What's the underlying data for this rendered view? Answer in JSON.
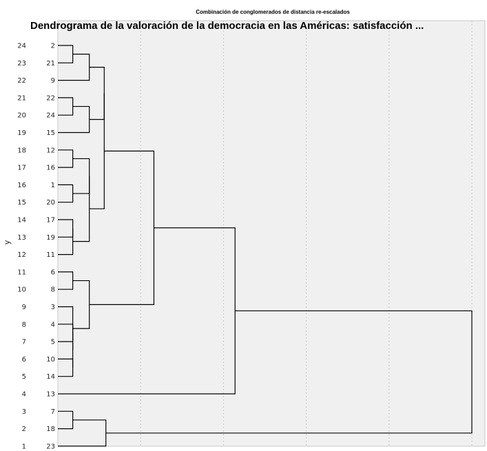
{
  "chart_data": {
    "type": "dendrogram",
    "supertitle": "Combinación de conglomerados de distancia re-escalados",
    "title": "Dendrograma de la valoración de la democracia en las Américas: satisfacción ...",
    "ylabel": "y",
    "xlabel": "",
    "xlim": [
      0,
      25
    ],
    "grid": true,
    "leaves": [
      {
        "label": "2",
        "case": "24"
      },
      {
        "label": "21",
        "case": "23"
      },
      {
        "label": "9",
        "case": "22"
      },
      {
        "label": "22",
        "case": "21"
      },
      {
        "label": "24",
        "case": "20"
      },
      {
        "label": "15",
        "case": "19"
      },
      {
        "label": "12",
        "case": "18"
      },
      {
        "label": "16",
        "case": "17"
      },
      {
        "label": "1",
        "case": "16"
      },
      {
        "label": "20",
        "case": "15"
      },
      {
        "label": "17",
        "case": "14"
      },
      {
        "label": "19",
        "case": "13"
      },
      {
        "label": "11",
        "case": "12"
      },
      {
        "label": "6",
        "case": "11"
      },
      {
        "label": "8",
        "case": "10"
      },
      {
        "label": "3",
        "case": "9"
      },
      {
        "label": "4",
        "case": "8"
      },
      {
        "label": "5",
        "case": "7"
      },
      {
        "label": "10",
        "case": "6"
      },
      {
        "label": "14",
        "case": "5"
      },
      {
        "label": "13",
        "case": "4"
      },
      {
        "label": "7",
        "case": "3"
      },
      {
        "label": "18",
        "case": "2"
      },
      {
        "label": "23",
        "case": "1"
      }
    ],
    "merges": [
      {
        "id": "A",
        "children": [
          0,
          1
        ],
        "height": 0.9
      },
      {
        "id": "B",
        "children": [
          3,
          4
        ],
        "height": 0.9
      },
      {
        "id": "C",
        "children": [
          "A",
          2
        ],
        "height": 1.9
      },
      {
        "id": "D",
        "children": [
          "B",
          5
        ],
        "height": 1.9
      },
      {
        "id": "E",
        "children": [
          "C",
          "D"
        ],
        "height": 2.8
      },
      {
        "id": "F",
        "children": [
          6,
          7
        ],
        "height": 0.9
      },
      {
        "id": "G",
        "children": [
          8,
          9
        ],
        "height": 0.9
      },
      {
        "id": "H",
        "children": [
          "F",
          "G"
        ],
        "height": 1.9
      },
      {
        "id": "I",
        "children": [
          10,
          11
        ],
        "height": 0.9
      },
      {
        "id": "J",
        "children": [
          "I",
          12
        ],
        "height": 0.9
      },
      {
        "id": "K",
        "children": [
          "H",
          "J"
        ],
        "height": 1.9
      },
      {
        "id": "L",
        "children": [
          "E",
          "K"
        ],
        "height": 2.8
      },
      {
        "id": "M",
        "children": [
          13,
          14
        ],
        "height": 0.9
      },
      {
        "id": "N",
        "children": [
          16,
          17
        ],
        "height": 0.9
      },
      {
        "id": "O",
        "children": [
          18,
          19
        ],
        "height": 0.9
      },
      {
        "id": "P",
        "children": [
          "N",
          "O"
        ],
        "height": 0.9
      },
      {
        "id": "Q",
        "children": [
          15,
          "P"
        ],
        "height": 0.9
      },
      {
        "id": "R",
        "children": [
          "M",
          "Q"
        ],
        "height": 1.9
      },
      {
        "id": "S",
        "children": [
          "L",
          "R"
        ],
        "height": 5.8
      },
      {
        "id": "T",
        "children": [
          "S",
          20
        ],
        "height": 10.7
      },
      {
        "id": "U",
        "children": [
          21,
          22
        ],
        "height": 0.9
      },
      {
        "id": "V",
        "children": [
          "U",
          23
        ],
        "height": 2.9
      },
      {
        "id": "W",
        "children": [
          "T",
          "V"
        ],
        "height": 25
      }
    ]
  }
}
